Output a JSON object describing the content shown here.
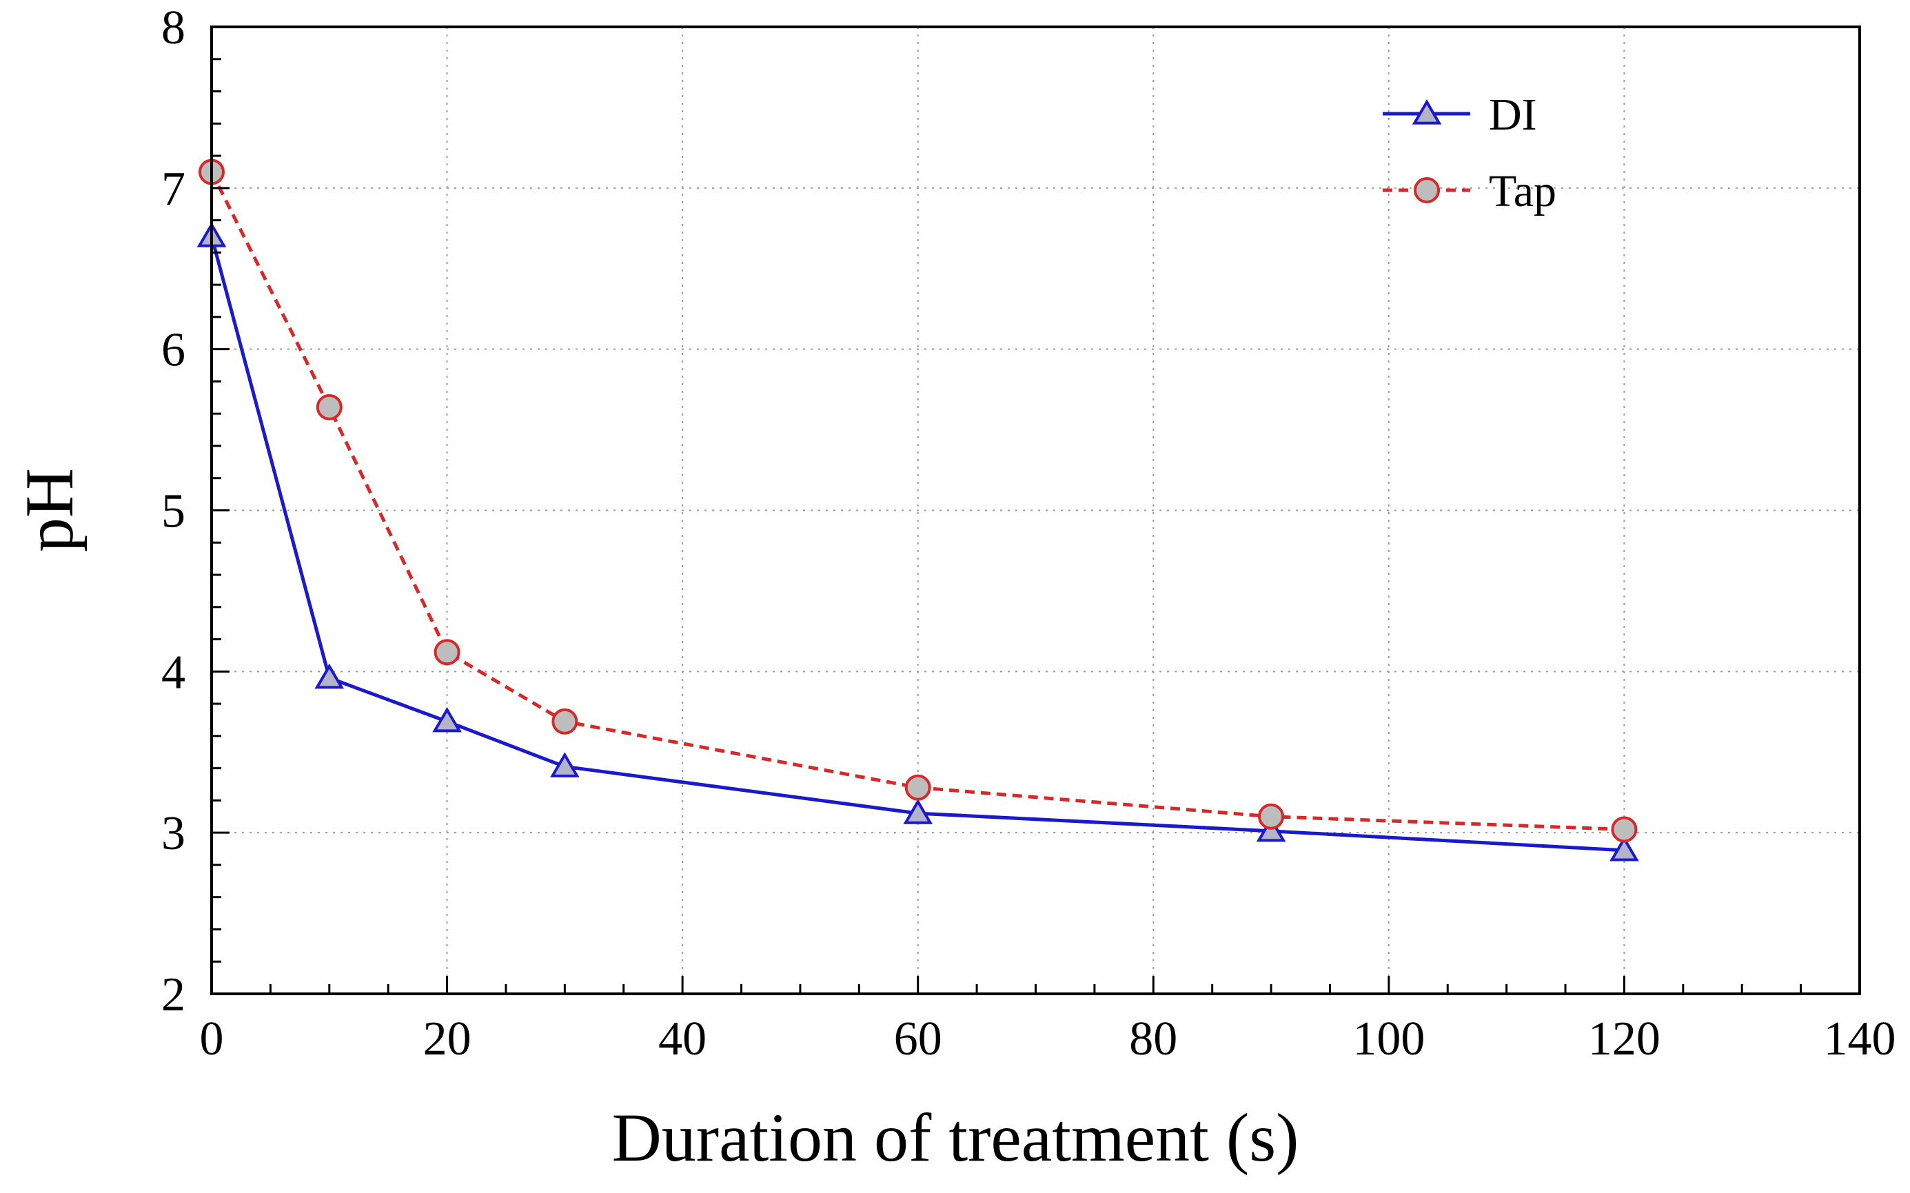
{
  "chart_data": {
    "type": "line",
    "title": "",
    "xlabel": "Duration of treatment (s)",
    "ylabel": "pH",
    "xlim": [
      0,
      140
    ],
    "ylim": [
      2,
      8
    ],
    "xticks": [
      0,
      20,
      40,
      60,
      80,
      100,
      120,
      140
    ],
    "yticks": [
      2,
      3,
      4,
      5,
      6,
      7,
      8
    ],
    "grid": true,
    "legend_position": "top-right",
    "series": [
      {
        "name": "DI",
        "marker": "triangle",
        "line_style": "solid",
        "color": "#1a1acc",
        "marker_fill": "#b4b4c8",
        "x": [
          0,
          10,
          20,
          30,
          60,
          90,
          120
        ],
        "y": [
          6.7,
          3.96,
          3.69,
          3.41,
          3.12,
          3.01,
          2.89
        ]
      },
      {
        "name": "Tap",
        "marker": "circle",
        "line_style": "dashed",
        "color": "#d62a2a",
        "marker_fill": "#bdbdbd",
        "x": [
          0,
          10,
          20,
          30,
          60,
          90,
          120
        ],
        "y": [
          7.1,
          5.64,
          4.12,
          3.69,
          3.28,
          3.1,
          3.02
        ]
      }
    ]
  }
}
